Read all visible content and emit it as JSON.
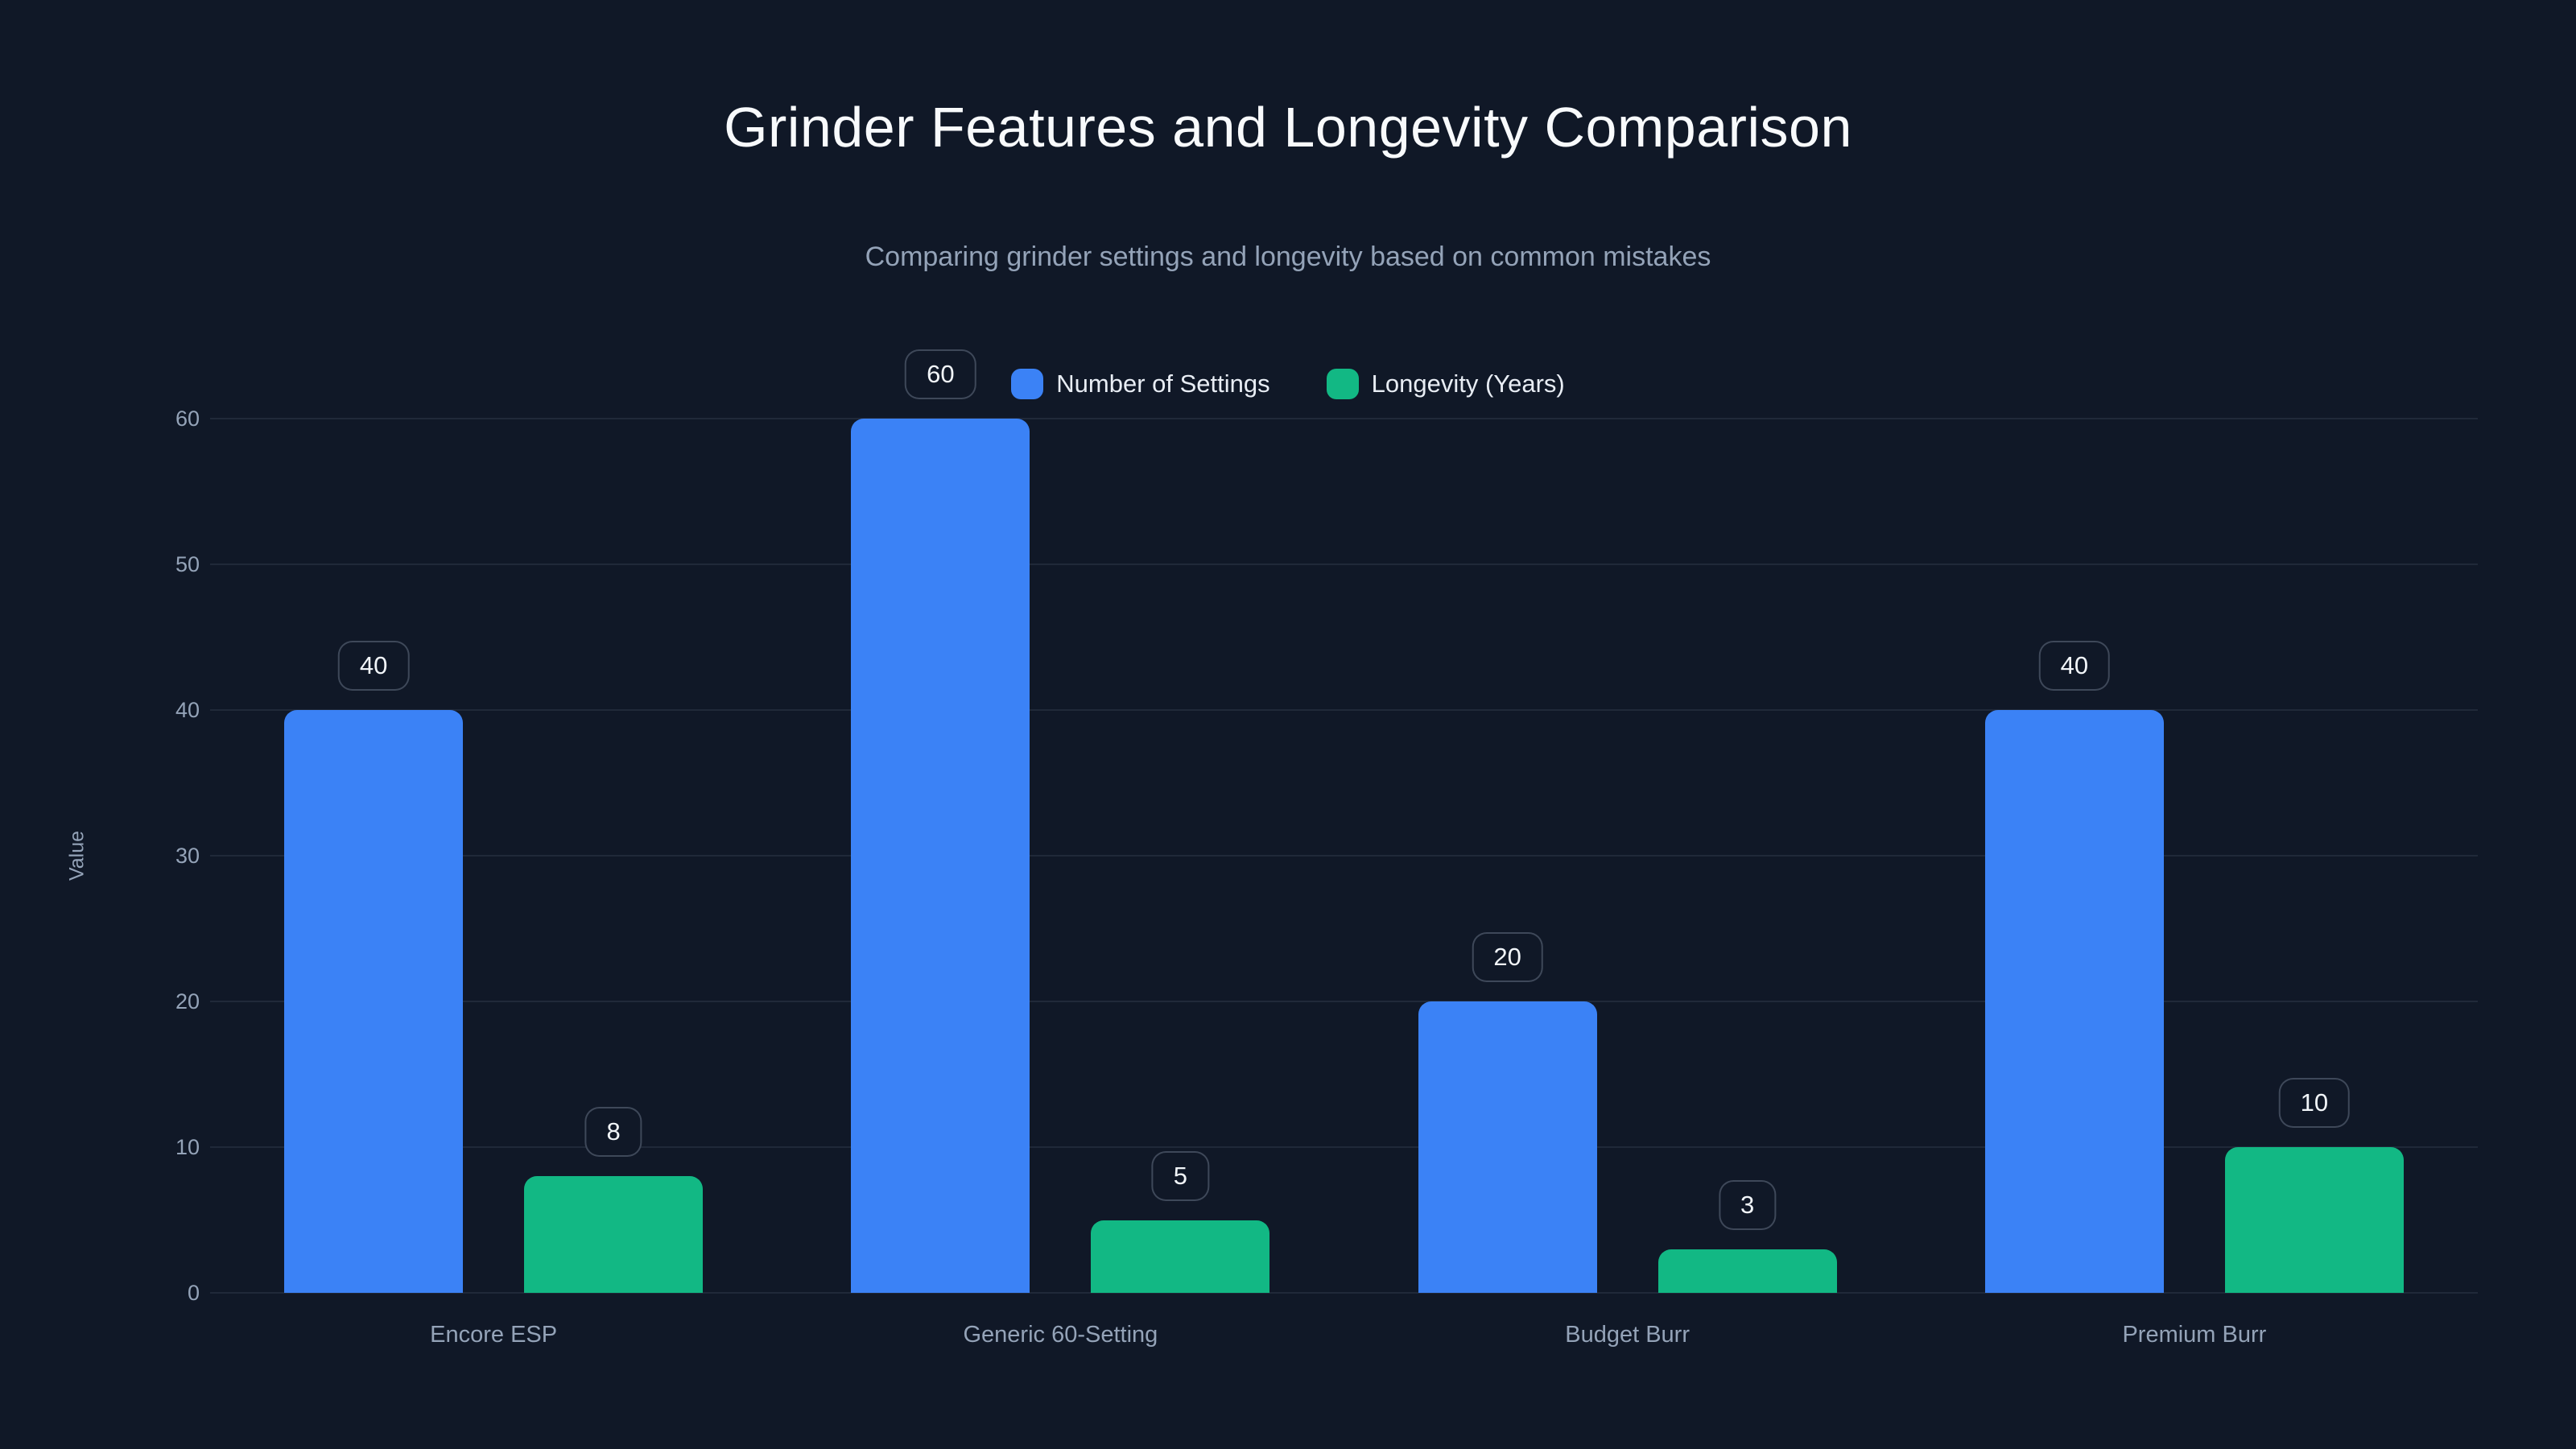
{
  "page": {
    "title": "Grinder Features and Longevity Comparison",
    "subtitle": "Comparing grinder settings and longevity based on common mistakes"
  },
  "legend": {
    "items": [
      {
        "label": "Number of Settings",
        "color": "#3b82f6"
      },
      {
        "label": "Longevity (Years)",
        "color": "#12b884"
      }
    ]
  },
  "y_axis": {
    "label": "Value",
    "ticks": [
      "0",
      "10",
      "20",
      "30",
      "40",
      "50",
      "60"
    ]
  },
  "colors": {
    "background": "#101827",
    "series_blue": "#3b82f6",
    "series_green": "#12b884",
    "gridline": "rgba(148,163,184,0.13)",
    "title_text": "#f8fafc",
    "muted_text": "#94a3b8",
    "badge_border": "rgba(148,163,184,0.35)",
    "badge_text": "#f1f5f9"
  },
  "chart_data": {
    "type": "bar",
    "title": "Grinder Features and Longevity Comparison",
    "subtitle": "Comparing grinder settings and longevity based on common mistakes",
    "categories": [
      "Encore ESP",
      "Generic 60-Setting",
      "Budget Burr",
      "Premium Burr"
    ],
    "series": [
      {
        "name": "Number of Settings",
        "color": "#3b82f6",
        "values": [
          40,
          60,
          20,
          40
        ]
      },
      {
        "name": "Longevity (Years)",
        "color": "#12b884",
        "values": [
          8,
          5,
          3,
          10
        ]
      }
    ],
    "xlabel": "",
    "ylabel": "Value",
    "ylim": [
      0,
      60
    ],
    "yticks": [
      0,
      10,
      20,
      30,
      40,
      50,
      60
    ],
    "grid": true,
    "legend_position": "top",
    "data_labels": true
  }
}
